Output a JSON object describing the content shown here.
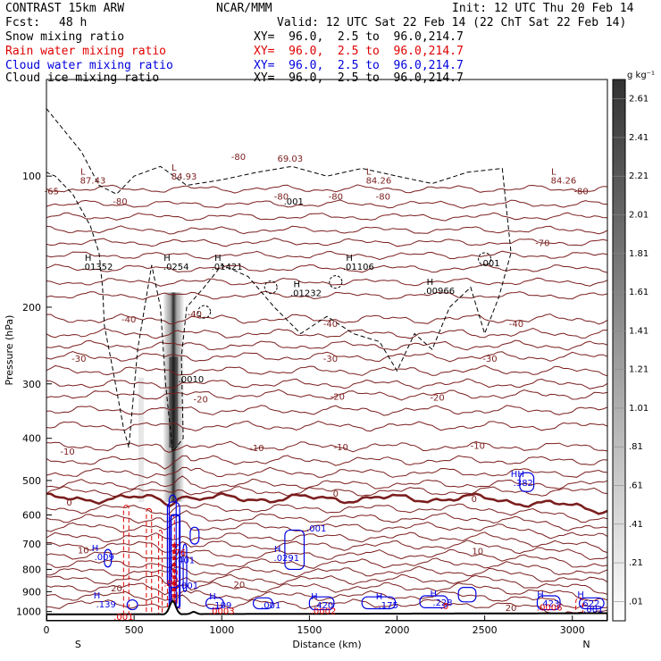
{
  "header": {
    "model": "CONTRAST 15km ARW",
    "center": "NCAR/MMM",
    "init": "Init: 12 UTC Thu 20 Feb 14",
    "fcst_label": "Fcst:",
    "fcst_value": "48 h",
    "valid": "Valid: 12 UTC Sat 22 Feb 14 (22 ChT Sat 22 Feb 14)"
  },
  "fields": [
    {
      "name": "Snow mixing ratio",
      "xy": "XY=  96.0,  2.5 to  96.0,214.7",
      "color": "#000000"
    },
    {
      "name": "Rain water mixing ratio",
      "xy": "XY=  96.0,  2.5 to  96.0,214.7",
      "color": "#e00000"
    },
    {
      "name": "Cloud water mixing ratio",
      "xy": "XY=  96.0,  2.5 to  96.0,214.7",
      "color": "#0000e0"
    },
    {
      "name": "Cloud ice mixing ratio",
      "xy": "XY=  96.0,  2.5 to  96.0,214.7",
      "color": "#000000"
    }
  ],
  "colors": {
    "temperature": "#7b1e1e",
    "snow": "#000000",
    "rain": "#e00000",
    "cloud_water": "#0000e0"
  },
  "chart_data": {
    "type": "cross-section",
    "xlabel": "Distance (km)",
    "ylabel": "Pressure (hPa)",
    "xlim": [
      0,
      3200
    ],
    "ylim": [
      1050,
      60
    ],
    "y_scale": "log",
    "x_ticks": [
      0,
      500,
      1000,
      1500,
      2000,
      2500,
      3000
    ],
    "y_ticks": [
      100,
      200,
      300,
      400,
      500,
      600,
      700,
      800,
      900,
      1000
    ],
    "x_end_labels": {
      "left": "S",
      "right": "N"
    },
    "colorbar": {
      "unit": "g kg⁻¹",
      "labels": [
        ".01",
        ".21",
        ".41",
        ".61",
        ".81",
        "1.01",
        "1.21",
        "1.41",
        "1.61",
        "1.81",
        "2.01",
        "2.21",
        "2.41",
        "2.61"
      ]
    },
    "temperature_isotherms": [
      {
        "value": -80,
        "p": 107
      },
      {
        "value": -70,
        "p": 142
      },
      {
        "value": -40,
        "p": 213
      },
      {
        "value": -30,
        "p": 260
      },
      {
        "value": -20,
        "p": 318
      },
      {
        "value": -10,
        "p": 418
      },
      {
        "value": 0,
        "p": 550
      },
      {
        "value": 10,
        "p": 705
      },
      {
        "value": 20,
        "p": 880
      }
    ],
    "temperature_labels": [
      {
        "text": "-65",
        "x": 30,
        "p": 108
      },
      {
        "text": "-80",
        "x": 1095,
        "p": 90
      },
      {
        "text": "-80",
        "x": 420,
        "p": 114
      },
      {
        "text": "-80",
        "x": 1340,
        "p": 111
      },
      {
        "text": "-80",
        "x": 1650,
        "p": 111
      },
      {
        "text": "-80",
        "x": 1920,
        "p": 111
      },
      {
        "text": "-80",
        "x": 3050,
        "p": 108
      },
      {
        "text": "-70",
        "x": 2830,
        "p": 142
      },
      {
        "text": "-40",
        "x": 470,
        "p": 213
      },
      {
        "text": "-40",
        "x": 845,
        "p": 207
      },
      {
        "text": "-40",
        "x": 1620,
        "p": 218
      },
      {
        "text": "-40",
        "x": 2680,
        "p": 218
      },
      {
        "text": "-30",
        "x": 185,
        "p": 262
      },
      {
        "text": "-30",
        "x": 1620,
        "p": 262
      },
      {
        "text": "-30",
        "x": 2530,
        "p": 262
      },
      {
        "text": "-20",
        "x": 880,
        "p": 325
      },
      {
        "text": "-20",
        "x": 1660,
        "p": 320
      },
      {
        "text": "-20",
        "x": 2230,
        "p": 322
      },
      {
        "text": "-10",
        "x": 120,
        "p": 428
      },
      {
        "text": "-10",
        "x": 1200,
        "p": 420
      },
      {
        "text": "-10",
        "x": 1680,
        "p": 418
      },
      {
        "text": "-10",
        "x": 2460,
        "p": 415
      },
      {
        "text": "0",
        "x": 130,
        "p": 560
      },
      {
        "text": "0",
        "x": 1650,
        "p": 535
      },
      {
        "text": "0",
        "x": 2440,
        "p": 550
      },
      {
        "text": "10",
        "x": 210,
        "p": 722
      },
      {
        "text": "10",
        "x": 2460,
        "p": 725
      },
      {
        "text": "20",
        "x": 400,
        "p": 882
      },
      {
        "text": "20",
        "x": 1100,
        "p": 865
      },
      {
        "text": "20",
        "x": 2650,
        "p": 978
      }
    ],
    "extrema_labels": [
      {
        "kind": "L",
        "x": 265,
        "p": 102,
        "value": "87.43",
        "color": "#7b1e1e"
      },
      {
        "kind": "H",
        "x": 290,
        "p": 161,
        "value": ".01352",
        "color": "#000000"
      },
      {
        "kind": "L",
        "x": 785,
        "p": 100,
        "value": "84.93",
        "color": "#7b1e1e"
      },
      {
        "kind": "",
        "x": 1390,
        "p": 91,
        "value": "69.03",
        "color": "#7b1e1e"
      },
      {
        "kind": "H",
        "x": 740,
        "p": 161,
        "value": ".0254",
        "color": "#000000"
      },
      {
        "kind": "H",
        "x": 1030,
        "p": 161,
        "value": ".01421",
        "color": "#000000"
      },
      {
        "kind": "",
        "x": 1410,
        "p": 114,
        "value": ".001",
        "color": "#000000"
      },
      {
        "kind": "L",
        "x": 1895,
        "p": 102,
        "value": "84.26",
        "color": "#7b1e1e"
      },
      {
        "kind": "H",
        "x": 1780,
        "p": 161,
        "value": ".01106",
        "color": "#000000"
      },
      {
        "kind": "H",
        "x": 1480,
        "p": 185,
        "value": ".01232",
        "color": "#000000"
      },
      {
        "kind": "H",
        "x": 2240,
        "p": 183,
        "value": ".00966",
        "color": "#000000"
      },
      {
        "kind": "",
        "x": 2530,
        "p": 158,
        "value": ".001",
        "color": "#000000"
      },
      {
        "kind": "L",
        "x": 2950,
        "p": 102,
        "value": "84.26",
        "color": "#7b1e1e"
      },
      {
        "kind": "",
        "x": 825,
        "p": 292,
        "value": ".0010",
        "color": "#000000"
      },
      {
        "kind": "HH",
        "x": 2720,
        "p": 505,
        "value": ".382",
        "color": "#0000e0"
      },
      {
        "kind": "",
        "x": 1540,
        "p": 642,
        "value": ".001",
        "color": "#0000e0"
      },
      {
        "kind": "H",
        "x": 330,
        "p": 748,
        "value": ".009",
        "color": "#0000e0"
      },
      {
        "kind": "H",
        "x": 1370,
        "p": 750,
        "value": ".0291",
        "color": "#0000e0"
      },
      {
        "kind": "",
        "x": 790,
        "p": 760,
        "value": ".401",
        "color": "#0000e0"
      },
      {
        "kind": "",
        "x": 755,
        "p": 730,
        "value": ".76",
        "color": "#e00000"
      },
      {
        "kind": "",
        "x": 710,
        "p": 860,
        "value": ".85",
        "color": "#e00000"
      },
      {
        "kind": "",
        "x": 810,
        "p": 870,
        "value": ".001",
        "color": "#0000e0"
      },
      {
        "kind": "H",
        "x": 340,
        "p": 960,
        "value": ".139",
        "color": "#0000e0"
      },
      {
        "kind": "H",
        "x": 1000,
        "p": 965,
        "value": ".109",
        "color": "#0000e0"
      },
      {
        "kind": "",
        "x": 1280,
        "p": 965,
        "value": ".001",
        "color": "#0000e0"
      },
      {
        "kind": "H",
        "x": 1580,
        "p": 965,
        "value": ".420",
        "color": "#0000e0"
      },
      {
        "kind": "H",
        "x": 1950,
        "p": 965,
        "value": ".175",
        "color": "#0000e0"
      },
      {
        "kind": "H",
        "x": 2260,
        "p": 950,
        "value": ".228",
        "color": "#0000e0"
      },
      {
        "kind": "H",
        "x": 2870,
        "p": 955,
        "value": ".423",
        "color": "#0000e0"
      },
      {
        "kind": "H",
        "x": 3100,
        "p": 955,
        "value": ".622",
        "color": "#0000e0"
      },
      {
        "kind": "",
        "x": 1000,
        "p": 995,
        "value": ".0003",
        "color": "#e00000"
      },
      {
        "kind": "",
        "x": 1580,
        "p": 995,
        "value": ".0002",
        "color": "#e00000"
      },
      {
        "kind": "",
        "x": 2270,
        "p": 970,
        "value": ".0",
        "color": "#e00000"
      },
      {
        "kind": "",
        "x": 2870,
        "p": 975,
        "value": ".0006",
        "color": "#e00000"
      },
      {
        "kind": "",
        "x": 3120,
        "p": 985,
        "value": ".001",
        "color": "#0000e0"
      },
      {
        "kind": "",
        "x": 440,
        "p": 1025,
        "value": ".001",
        "color": "#e00000"
      }
    ],
    "snow_core": {
      "x": 725,
      "p_top": 185,
      "p_bottom": 560,
      "peak_p": 300
    }
  }
}
